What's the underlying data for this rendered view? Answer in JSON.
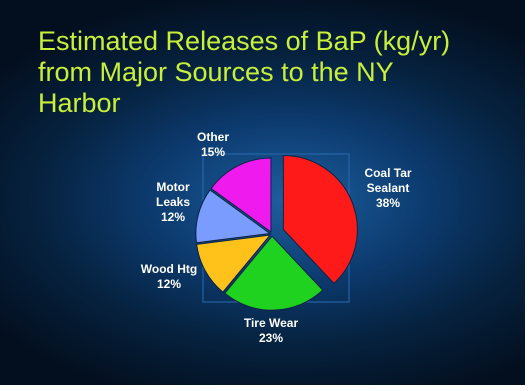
{
  "title_lines": [
    "Estimated Releases of BaP (kg/yr)",
    "from Major Sources to the NY",
    "Harbor"
  ],
  "colors": {
    "title": "#c8ef3a",
    "coal_tar": "#ff1a1a",
    "tire_wear": "#1fd21f",
    "wood_htg": "#ffc21a",
    "motor_leaks": "#7a9cff",
    "other": "#ee1aee"
  },
  "chart_data": {
    "type": "pie",
    "title": "Estimated Releases of BaP (kg/yr) from Major Sources to the NY Harbor",
    "slices": [
      {
        "key": "coal_tar",
        "label_lines": [
          "Coal Tar",
          "Sealant"
        ],
        "value": 38,
        "pct_text": "38%",
        "color": "#ff1a1a"
      },
      {
        "key": "tire_wear",
        "label_lines": [
          "Tire Wear"
        ],
        "value": 23,
        "pct_text": "23%",
        "color": "#1fd21f"
      },
      {
        "key": "wood_htg",
        "label_lines": [
          "Wood Htg"
        ],
        "value": 12,
        "pct_text": "12%",
        "color": "#ffc21a"
      },
      {
        "key": "motor_leaks",
        "label_lines": [
          "Motor",
          "Leaks"
        ],
        "value": 12,
        "pct_text": "12%",
        "color": "#7a9cff"
      },
      {
        "key": "other",
        "label_lines": [
          "Other"
        ],
        "value": 15,
        "pct_text": "15%",
        "color": "#ee1aee"
      }
    ],
    "legend": "none",
    "grid": false
  }
}
